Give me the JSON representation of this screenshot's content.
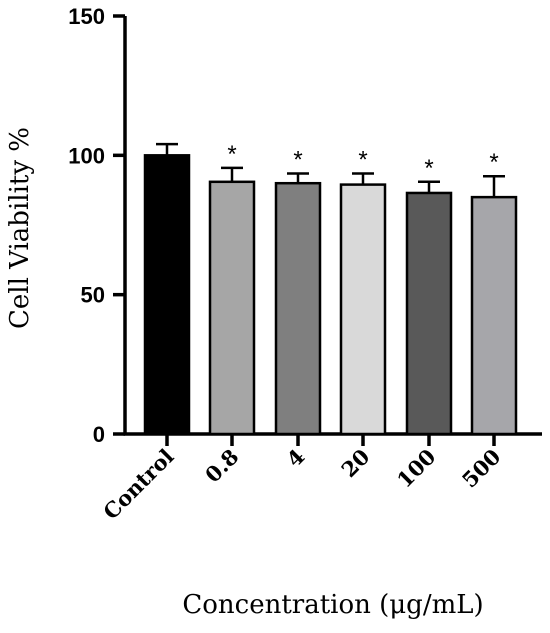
{
  "chart_data": {
    "type": "bar",
    "title": "",
    "xlabel": "Concentration (μg/mL)",
    "ylabel": "Cell Viability %",
    "ylim": [
      0,
      150
    ],
    "yticks": [
      0,
      50,
      100,
      150
    ],
    "categories": [
      "Control",
      "0.8",
      "4",
      "20",
      "100",
      "500"
    ],
    "values": [
      100,
      90.5,
      90,
      89.5,
      86.5,
      85
    ],
    "errors": [
      4,
      5,
      3.5,
      4,
      4,
      7.5
    ],
    "annotations": [
      "",
      "*",
      "*",
      "*",
      "*",
      "*"
    ],
    "bar_colors": [
      "#000000",
      "#a6a6a6",
      "#7f7f7f",
      "#d9d9d9",
      "#595959",
      "#a6a6aa"
    ],
    "grid": false
  }
}
